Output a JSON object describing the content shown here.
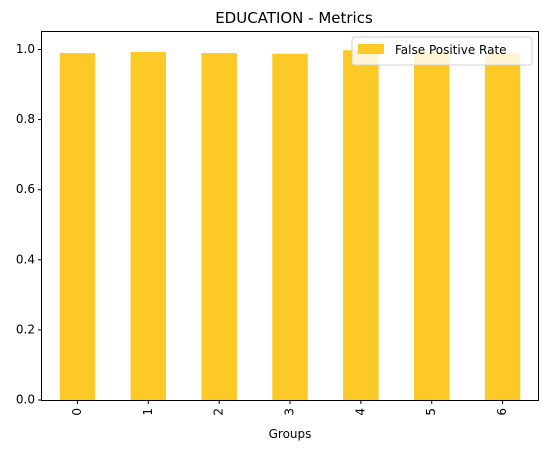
{
  "chart_data": {
    "type": "bar",
    "title": "EDUCATION - Metrics",
    "xlabel": "Groups",
    "ylabel": "",
    "categories": [
      "0",
      "1",
      "2",
      "3",
      "4",
      "5",
      "6"
    ],
    "series": [
      {
        "name": "False Positive Rate",
        "color": "#fcc926",
        "values": [
          0.99,
          0.993,
          0.99,
          0.988,
          0.998,
          0.993,
          0.99
        ]
      }
    ],
    "ylim": [
      0,
      1.05
    ],
    "yticks": [
      "0.0",
      "0.2",
      "0.4",
      "0.6",
      "0.8",
      "1.0"
    ],
    "grid": false,
    "legend_position": "top-right"
  }
}
